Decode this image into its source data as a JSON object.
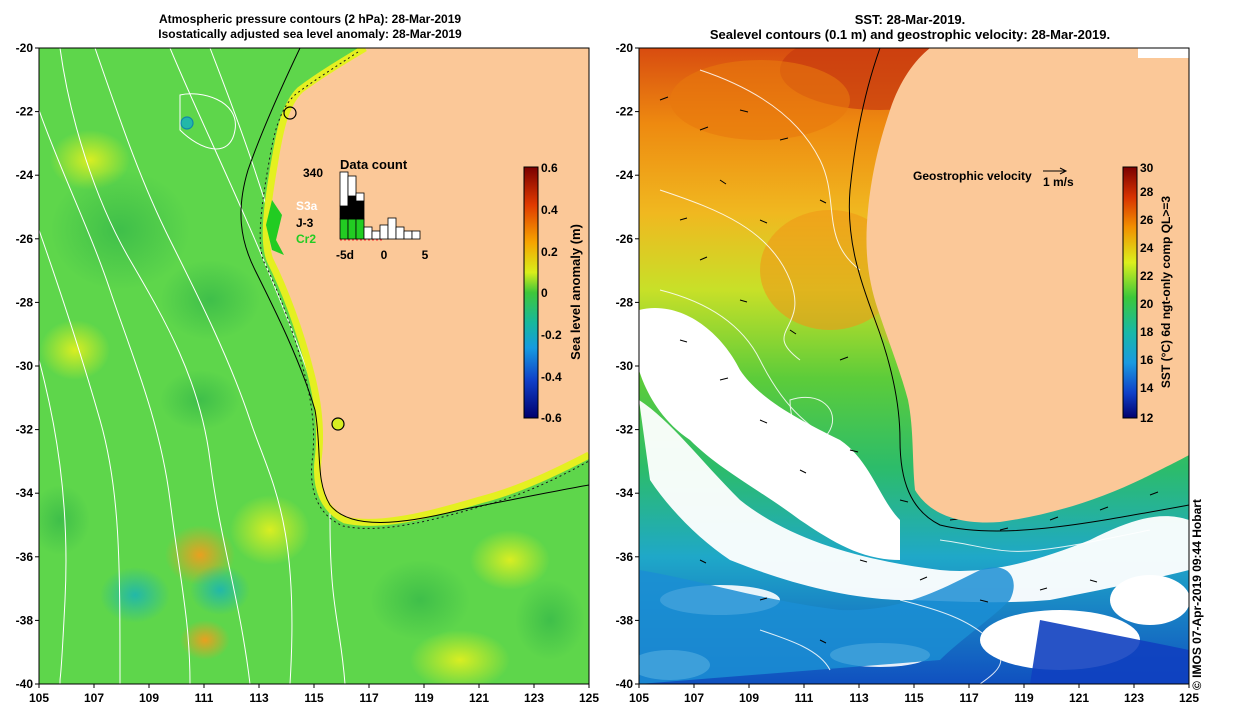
{
  "left_panel": {
    "title_line1": "Atmospheric pressure contours (2 hPa): 28-Mar-2019",
    "title_line2": "Isostatically adjusted sea level anomaly: 28-Mar-2019",
    "colorbar": {
      "label": "Sea level anomaly (m)",
      "ticks": [
        "0.6",
        "0.4",
        "0.2",
        "0",
        "-0.2",
        "-0.4",
        "-0.6"
      ]
    },
    "inset": {
      "title": "Data count",
      "max_label": "340",
      "x_ticks": [
        "-5d",
        "0",
        "5"
      ],
      "missions": [
        {
          "name": "S3a",
          "color": "#ffffff"
        },
        {
          "name": "J-3",
          "color": "#000000"
        },
        {
          "name": "Cr2",
          "color": "#22cc22"
        }
      ]
    }
  },
  "right_panel": {
    "title_line1": "SST: 28-Mar-2019.",
    "title_line2": "Sealevel contours (0.1 m) and geostrophic velocity: 28-Mar-2019.",
    "velocity_legend": {
      "label": "Geostrophic velocity",
      "scale": "1 m/s"
    },
    "colorbar": {
      "label": "SST (°C) 6d ngt-only comp QL>=3",
      "ticks": [
        "30",
        "28",
        "26",
        "24",
        "22",
        "20",
        "18",
        "16",
        "14",
        "12"
      ]
    }
  },
  "axes": {
    "lat_ticks": [
      "-20",
      "-22",
      "-24",
      "-26",
      "-28",
      "-30",
      "-32",
      "-34",
      "-36",
      "-38",
      "-40"
    ],
    "lon_ticks": [
      "105",
      "107",
      "109",
      "111",
      "113",
      "115",
      "117",
      "119",
      "121",
      "123",
      "125"
    ]
  },
  "copyright": "© IMOS 07-Apr-2019 09:44 Hobart",
  "colors": {
    "land": "#fbc898",
    "sla_base": "#5ed64b",
    "sst_warm": "#f08a10",
    "sst_cool": "#2a9bd8"
  }
}
